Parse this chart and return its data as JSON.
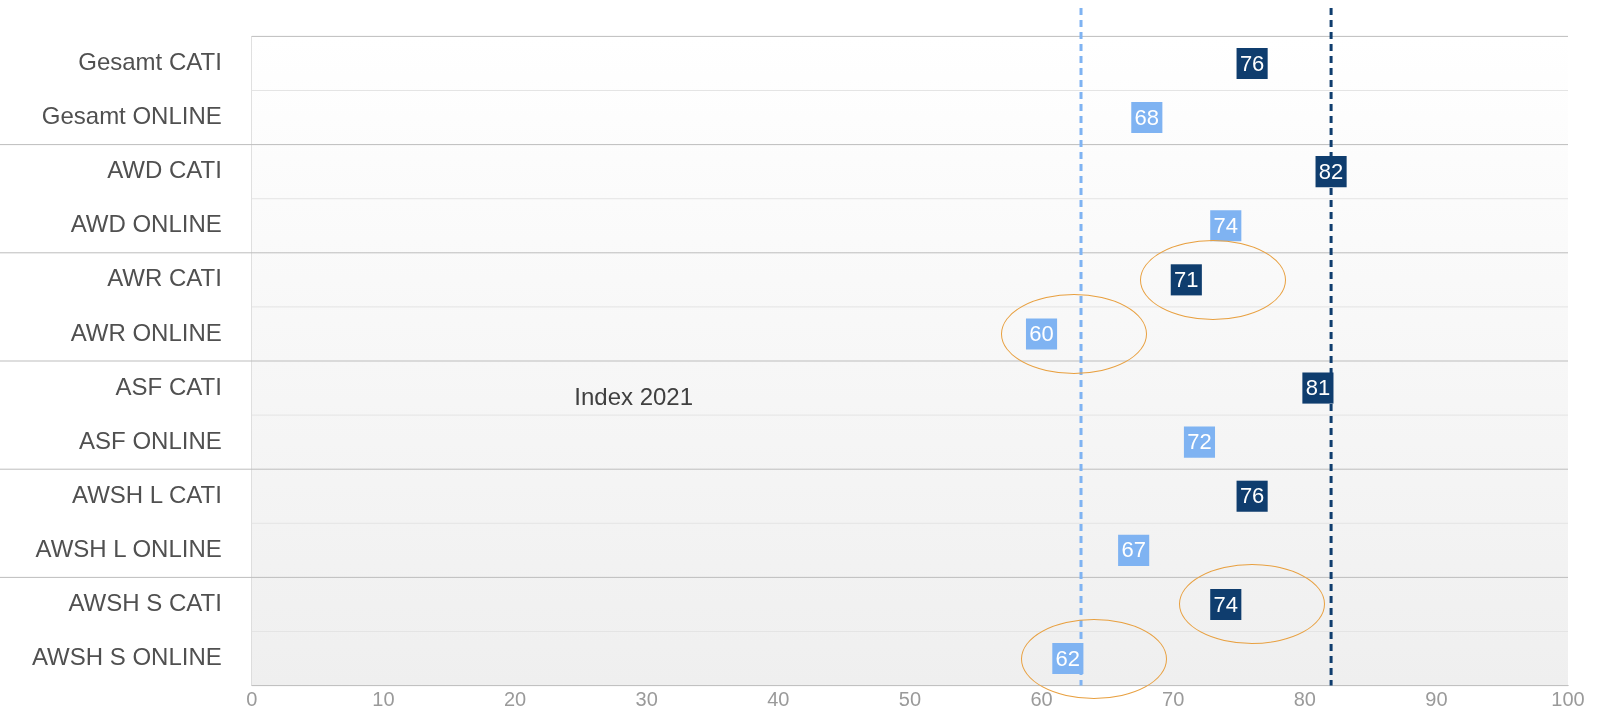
{
  "chart_data": {
    "type": "scatter",
    "orientation": "horizontal",
    "categories": [
      "Gesamt CATI",
      "Gesamt ONLINE",
      "AWD CATI",
      "AWD ONLINE",
      "AWR CATI",
      "AWR ONLINE",
      "ASF CATI",
      "ASF ONLINE",
      "AWSH L CATI",
      "AWSH L ONLINE",
      "AWSH S CATI",
      "AWSH S ONLINE"
    ],
    "values": [
      76,
      68,
      82,
      74,
      71,
      60,
      81,
      72,
      76,
      67,
      74,
      62
    ],
    "colors": [
      "#0f3d6e",
      "#7fb3f2",
      "#0f3d6e",
      "#7fb3f2",
      "#0f3d6e",
      "#7fb3f2",
      "#0f3d6e",
      "#7fb3f2",
      "#0f3d6e",
      "#7fb3f2",
      "#0f3d6e",
      "#7fb3f2"
    ],
    "xlim": [
      0,
      100
    ],
    "xticks": [
      0,
      10,
      20,
      30,
      40,
      50,
      60,
      70,
      80,
      90,
      100
    ],
    "marker": "square",
    "data_labels": true,
    "grid": "y",
    "legend": false,
    "ref_lines": [
      {
        "axis": "x",
        "value": 63,
        "color": "#7fb3f2",
        "line_style": "dashed"
      },
      {
        "axis": "x",
        "value": 82,
        "color": "#0f3d6e",
        "line_style": "dashed"
      }
    ],
    "annotations": [
      "Index 2021"
    ]
  }
}
